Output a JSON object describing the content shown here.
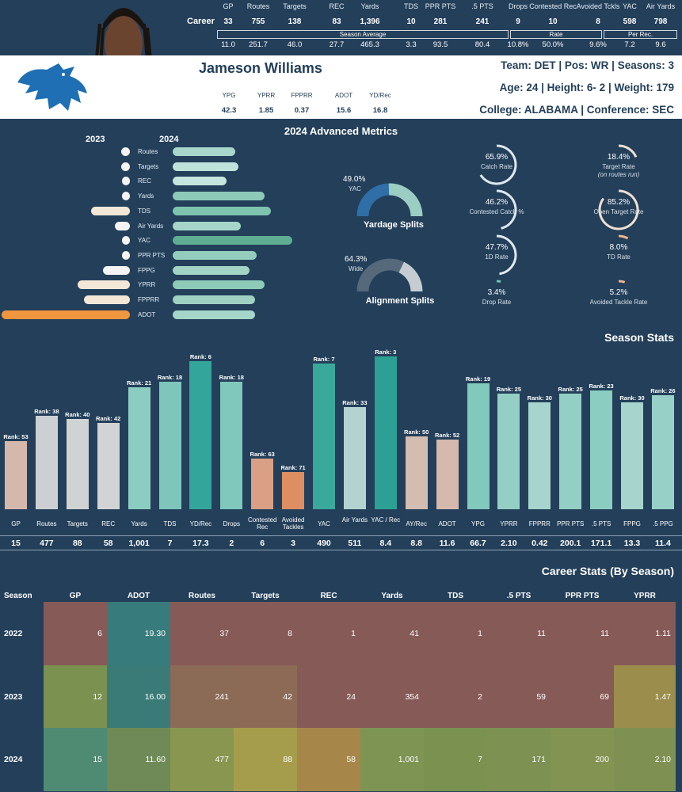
{
  "header": {
    "career_label": "Career",
    "columns": [
      "GP",
      "Routes",
      "Targets",
      "REC",
      "Yards",
      "TDS",
      "PPR PTS",
      ".5 PTS",
      "Drops",
      "Contested Rec",
      "Avoided Tckls",
      "YAC",
      "Air Yards"
    ],
    "career_values": [
      "33",
      "755",
      "138",
      "83",
      "1,396",
      "10",
      "281",
      "241",
      "9",
      "10",
      "8",
      "598",
      "798"
    ],
    "season_average_label": "Season Average",
    "rate_label": "Rate",
    "per_rec_label": "Per Rec.",
    "average_values": [
      "11.0",
      "251.7",
      "46.0",
      "27.7",
      "465.3",
      "3.3",
      "93.5",
      "80.4",
      "10.8%",
      "50.0%",
      "9.6%",
      "7.2",
      "9.6"
    ]
  },
  "player": {
    "name": "Jameson Williams",
    "team_line": "Team: DET  | Pos: WR | Seasons: 3",
    "age_line": "Age: 24 | Height: 6- 2 | Weight: 179",
    "college_line": "College: ALABAMA  | Conference: SEC",
    "mini_labels": [
      "YPG",
      "YPRR",
      "FPPRR",
      "ADOT",
      "YD/Rec"
    ],
    "mini_values": [
      "42.3",
      "1.85",
      "0.37",
      "15.6",
      "16.8"
    ]
  },
  "advanced": {
    "title": "2024 Advanced Metrics",
    "year_left": "2023",
    "year_right": "2024",
    "metrics": [
      {
        "label": "Routes",
        "v2023": 0.07,
        "v2024": 0.52,
        "c2024": "#a9d6cc"
      },
      {
        "label": "Targets",
        "v2023": 0.07,
        "v2024": 0.55,
        "c2024": "#bfe3db"
      },
      {
        "label": "REC",
        "v2023": 0.06,
        "v2024": 0.45,
        "c2024": "#c4e6de"
      },
      {
        "label": "Yards",
        "v2023": 0.06,
        "v2024": 0.77,
        "c2024": "#8ecab8"
      },
      {
        "label": "TDS",
        "v2023": 0.3,
        "v2024": 0.82,
        "c2024": "#7ec3ae"
      },
      {
        "label": "Air Yards",
        "v2023": 0.12,
        "v2024": 0.57,
        "c2024": "#a5d6c9"
      },
      {
        "label": "YAC",
        "v2023": 0.06,
        "v2024": 1.0,
        "c2024": "#5fad93"
      },
      {
        "label": "PPR PTS",
        "v2023": 0.03,
        "v2024": 0.7,
        "c2024": "#94cdbd"
      },
      {
        "label": "FPPG",
        "v2023": 0.21,
        "v2024": 0.64,
        "c2024": "#a2d4c5"
      },
      {
        "label": "YPRR",
        "v2023": 0.41,
        "v2024": 0.77,
        "c2024": "#8ecab8"
      },
      {
        "label": "FPPRR",
        "v2023": 0.36,
        "v2024": 0.69,
        "c2024": "#9ed1c2"
      },
      {
        "label": "ADOT",
        "v2023": 1.0,
        "v2024": 0.69,
        "c2024": "#a5d6c9"
      }
    ],
    "yardage": {
      "pct": "49.0%",
      "sub": "YAC",
      "title": "Yardage Splits",
      "value": 0.49
    },
    "alignment": {
      "pct": "64.3%",
      "sub": "Wide",
      "title": "Alignment Splits",
      "value": 0.643
    },
    "gauges_left": [
      {
        "pct": "65.9%",
        "label": "Catch Rate",
        "value": 0.659
      },
      {
        "pct": "46.2%",
        "label": "Contested Catch %",
        "value": 0.462
      },
      {
        "pct": "47.7%",
        "label": "1D Rate",
        "value": 0.477
      },
      {
        "pct": "3.4%",
        "label": "Drop Rate",
        "value": 0.034
      }
    ],
    "gauges_right": [
      {
        "pct": "18.4%",
        "label": "Target Rate",
        "sub": "(on routes run)",
        "value": 0.184
      },
      {
        "pct": "85.2%",
        "label": "Open Target Rate",
        "value": 0.852
      },
      {
        "pct": "8.0%",
        "label": "TD Rate",
        "value": 0.08
      },
      {
        "pct": "5.2%",
        "label": "Avoided Tackle Rate",
        "value": 0.052
      }
    ]
  },
  "season_stats": {
    "title": "Season Stats",
    "items": [
      {
        "label": "GP",
        "value": "15",
        "rank": "Rank: 53",
        "rk": 53,
        "color": "#d5b8ac"
      },
      {
        "label": "Routes",
        "value": "477",
        "rank": "Rank: 38",
        "rk": 38,
        "color": "#ccd0d2"
      },
      {
        "label": "Targets",
        "value": "88",
        "rank": "Rank: 40",
        "rk": 40,
        "color": "#d0d3d4"
      },
      {
        "label": "REC",
        "value": "58",
        "rank": "Rank: 42",
        "rk": 42,
        "color": "#d2d3d4"
      },
      {
        "label": "Yards",
        "value": "1,001",
        "rank": "Rank: 21",
        "rk": 21,
        "color": "#8ccdc2"
      },
      {
        "label": "TDS",
        "value": "7",
        "rank": "Rank: 18",
        "rk": 18,
        "color": "#7ec6bb"
      },
      {
        "label": "YD/Rec",
        "value": "17.3",
        "rank": "Rank: 6",
        "rk": 6,
        "color": "#33a59a"
      },
      {
        "label": "Drops",
        "value": "2",
        "rank": "Rank: 18",
        "rk": 18,
        "color": "#80c7bc"
      },
      {
        "label": "Contested Rec",
        "value": "6",
        "rank": "Rank: 63",
        "rk": 63,
        "color": "#d9a085"
      },
      {
        "label": "Avoided Tackles",
        "value": "3",
        "rank": "Rank: 71",
        "rk": 71,
        "color": "#dd8f62"
      },
      {
        "label": "YAC",
        "value": "490",
        "rank": "Rank: 7",
        "rk": 7,
        "color": "#3ba89c"
      },
      {
        "label": "Air Yards",
        "value": "511",
        "rank": "Rank: 33",
        "rk": 33,
        "color": "#b4d2d0"
      },
      {
        "label": "YAC / Rec",
        "value": "8.4",
        "rank": "Rank: 3",
        "rk": 3,
        "color": "#2ca094"
      },
      {
        "label": "AY/Rec",
        "value": "8.8",
        "rank": "Rank: 50",
        "rk": 50,
        "color": "#d3bcb0"
      },
      {
        "label": "ADOT",
        "value": "11.6",
        "rank": "Rank: 52",
        "rk": 52,
        "color": "#d5b9ac"
      },
      {
        "label": "YPG",
        "value": "66.7",
        "rank": "Rank: 19",
        "rk": 19,
        "color": "#82c9bd"
      },
      {
        "label": "YPRR",
        "value": "2.10",
        "rank": "Rank: 25",
        "rk": 25,
        "color": "#94cfc5"
      },
      {
        "label": "FPPRR",
        "value": "0.42",
        "rank": "Rank: 30",
        "rk": 30,
        "color": "#a7d4cc"
      },
      {
        "label": "PPR PTS",
        "value": "200.1",
        "rank": "Rank: 25",
        "rk": 25,
        "color": "#94cfc5"
      },
      {
        "label": ".5 PTS",
        "value": "171.1",
        "rank": "Rank: 23",
        "rk": 23,
        "color": "#8ccdc2"
      },
      {
        "label": "FPPG",
        "value": "13.3",
        "rank": "Rank: 30",
        "rk": 30,
        "color": "#a7d4cc"
      },
      {
        ".5 PPG": "",
        "label": ".5 PPG",
        "value": "11.4",
        "rank": "Rank: 26",
        "rk": 26,
        "color": "#96d0c6"
      }
    ]
  },
  "career_stats": {
    "title": "Career Stats (By Season)",
    "headers": [
      "Season",
      "GP",
      "ADOT",
      "Routes",
      "Targets",
      "REC",
      "Yards",
      "TDS",
      ".5 PTS",
      "PPR PTS",
      "YPRR"
    ],
    "rows": [
      {
        "season": "2022",
        "cells": [
          "6",
          "19.30",
          "37",
          "8",
          "1",
          "41",
          "1",
          "11",
          "11",
          "1.11"
        ],
        "colors": [
          "#865a57",
          "#377b7c",
          "#865a57",
          "#865a57",
          "#865a57",
          "#865a57",
          "#865a57",
          "#865a57",
          "#865a57",
          "#865a57"
        ]
      },
      {
        "season": "2023",
        "cells": [
          "12",
          "16.00",
          "241",
          "42",
          "24",
          "354",
          "2",
          "59",
          "69",
          "1.47"
        ],
        "colors": [
          "#7a9150",
          "#3a7b78",
          "#8b6a56",
          "#8d6a55",
          "#865a57",
          "#865a57",
          "#865a57",
          "#865a57",
          "#865a57",
          "#9b8d4b"
        ]
      },
      {
        "season": "2024",
        "cells": [
          "15",
          "11.60",
          "477",
          "88",
          "58",
          "1,001",
          "7",
          "171",
          "200",
          "2.10"
        ],
        "colors": [
          "#4f8a72",
          "#6f8a57",
          "#889650",
          "#a59d4b",
          "#a7864a",
          "#7e9452",
          "#7a9150",
          "#7d9152",
          "#829352",
          "#7e9152"
        ]
      }
    ]
  }
}
